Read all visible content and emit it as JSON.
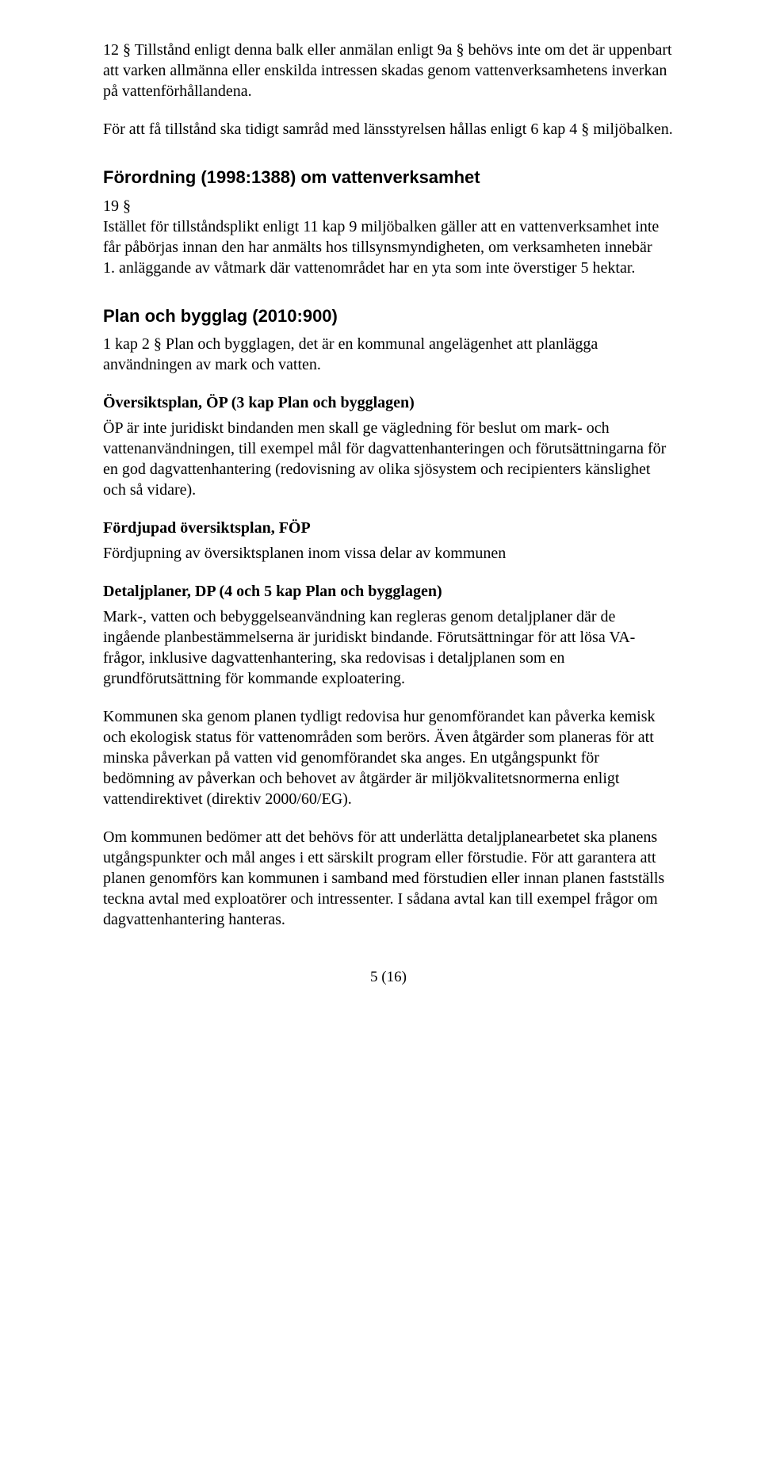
{
  "p1": "12 § Tillstånd enligt denna balk eller anmälan enligt 9a § behövs inte om det är uppenbart att varken allmänna eller enskilda intressen skadas genom vattenverksamhetens inverkan på vattenförhållandena.",
  "p2": "För att få tillstånd ska tidigt samråd med länsstyrelsen hållas enligt 6 kap 4 § miljöbalken.",
  "h1": "Förordning (1998:1388) om vattenverksamhet",
  "p3": "19 §",
  "p4": "Istället för tillståndsplikt enligt 11 kap 9 miljöbalken gäller att en vattenverksamhet inte får påbörjas innan den har anmälts hos tillsynsmyndigheten, om verksamheten innebär",
  "p5": "1. anläggande av våtmark där vattenområdet har en yta som inte överstiger 5 hektar.",
  "h2": "Plan och bygglag (2010:900)",
  "p6": "1 kap 2 § Plan och bygglagen, det är en kommunal angelägenhet att planlägga användningen av mark och vatten.",
  "s1": "Översiktsplan, ÖP (3 kap Plan och bygglagen)",
  "p7": "ÖP är inte juridiskt bindanden men skall ge vägledning för beslut om mark- och vattenanvändningen, till exempel mål för dagvattenhanteringen och förutsättningarna för en god dagvattenhantering (redovisning av olika sjösystem och recipienters känslighet och så vidare).",
  "s2": "Fördjupad översiktsplan, FÖP",
  "p8": "Fördjupning av översiktsplanen inom vissa delar av kommunen",
  "s3": "Detaljplaner, DP (4 och 5 kap Plan och bygglagen)",
  "p9": "Mark-, vatten och bebyggelseanvändning kan regleras genom detaljplaner där de ingående planbestämmelserna är juridiskt bindande. Förutsättningar för att lösa VA-frågor, inklusive dagvattenhantering, ska redovisas i detaljplanen som en grundförutsättning för kommande exploatering.",
  "p10": "Kommunen ska genom planen tydligt redovisa hur genomförandet kan påverka kemisk och ekologisk status för vattenområden som berörs. Även åtgärder som planeras för att minska påverkan på vatten vid genomförandet ska anges. En utgångspunkt för bedömning av påverkan och behovet av åtgärder är miljökvalitetsnormerna enligt vattendirektivet (direktiv 2000/60/EG).",
  "p11": "Om kommunen bedömer att det behövs för att underlätta detaljplanearbetet ska planens utgångspunkter och mål anges i ett särskilt program eller förstudie. För att garantera att planen genomförs kan kommunen i samband med förstudien eller innan planen fastställs teckna avtal med exploatörer och intressenter. I sådana avtal kan till exempel frågor om dagvattenhantering hanteras.",
  "pageNumber": "5 (16)"
}
